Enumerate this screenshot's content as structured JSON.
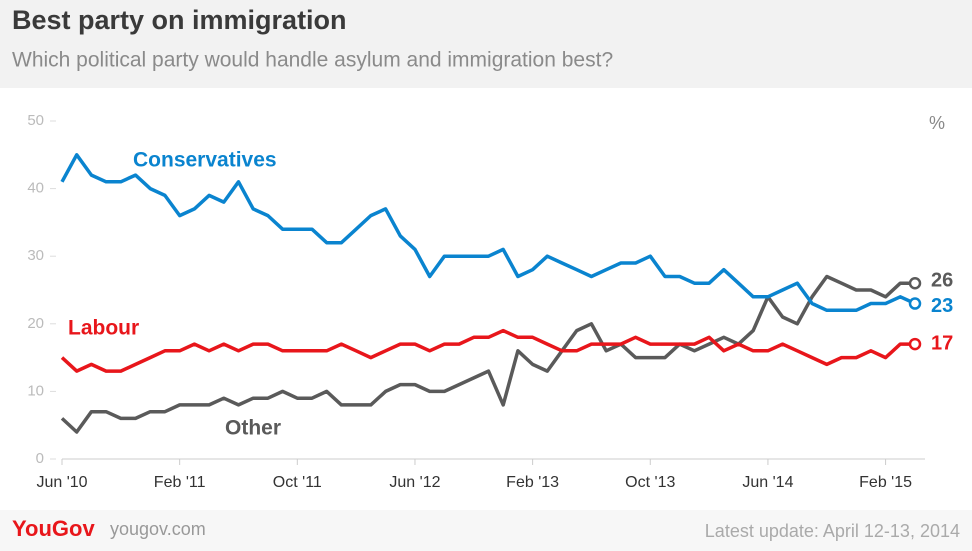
{
  "chart_data": {
    "type": "line",
    "title": "Best party on immigration",
    "subtitle": "Which political party would handle asylum and immigration best?",
    "y_unit": "%",
    "brand": "YouGov",
    "website": "yougov.com",
    "footnote": "Latest update: April 12-13, 2014",
    "x": [
      "2010-06",
      "2010-07",
      "2010-08",
      "2010-09",
      "2010-10",
      "2010-11",
      "2010-12",
      "2011-01",
      "2011-02",
      "2011-03",
      "2011-04",
      "2011-05",
      "2011-06",
      "2011-07",
      "2011-08",
      "2011-09",
      "2011-10",
      "2011-11",
      "2011-12",
      "2012-01",
      "2012-02",
      "2012-03",
      "2012-04",
      "2012-05",
      "2012-06",
      "2012-07",
      "2012-08",
      "2012-09",
      "2012-10",
      "2012-11",
      "2012-12",
      "2013-01",
      "2013-02",
      "2013-03",
      "2013-04",
      "2013-05",
      "2013-06",
      "2013-07",
      "2013-08",
      "2013-09",
      "2013-10",
      "2013-11",
      "2013-12",
      "2014-01",
      "2014-02",
      "2014-03",
      "2014-04",
      "2014-05",
      "2014-06",
      "2014-07",
      "2014-08",
      "2014-09",
      "2014-10",
      "2014-11",
      "2014-12",
      "2015-01",
      "2015-02",
      "2015-03",
      "2015-04"
    ],
    "series": [
      {
        "name": "Conservatives",
        "color": "#0a84cf",
        "values": [
          41,
          45,
          42,
          41,
          41,
          42,
          40,
          39,
          36,
          37,
          39,
          38,
          41,
          37,
          36,
          34,
          34,
          34,
          32,
          32,
          34,
          36,
          37,
          33,
          31,
          27,
          30,
          30,
          30,
          30,
          31,
          27,
          28,
          30,
          29,
          28,
          27,
          28,
          29,
          29,
          30,
          27,
          27,
          26,
          26,
          28,
          26,
          24,
          24,
          25,
          26,
          23,
          22,
          22,
          22,
          23,
          23,
          24,
          23
        ]
      },
      {
        "name": "Labour",
        "color": "#e8161b",
        "values": [
          15,
          13,
          14,
          13,
          13,
          14,
          15,
          16,
          16,
          17,
          16,
          17,
          16,
          17,
          17,
          16,
          16,
          16,
          16,
          17,
          16,
          15,
          16,
          17,
          17,
          16,
          17,
          17,
          18,
          18,
          19,
          18,
          18,
          17,
          16,
          16,
          17,
          17,
          17,
          18,
          17,
          17,
          17,
          17,
          18,
          16,
          17,
          16,
          16,
          17,
          16,
          15,
          14,
          15,
          15,
          16,
          15,
          17,
          17
        ]
      },
      {
        "name": "Other",
        "color": "#5a5a5a",
        "values": [
          6,
          4,
          7,
          7,
          6,
          6,
          7,
          7,
          8,
          8,
          8,
          9,
          8,
          9,
          9,
          10,
          9,
          9,
          10,
          8,
          8,
          8,
          10,
          11,
          11,
          10,
          10,
          11,
          12,
          13,
          8,
          16,
          14,
          13,
          16,
          19,
          20,
          16,
          17,
          15,
          15,
          15,
          17,
          16,
          17,
          18,
          17,
          19,
          24,
          21,
          20,
          24,
          27,
          26,
          25,
          25,
          24,
          26,
          26
        ]
      }
    ],
    "xlim": [
      "2010-06",
      "2015-04"
    ],
    "xticks": [
      {
        "value": "2010-06",
        "label": "Jun '10"
      },
      {
        "value": "2011-02",
        "label": "Feb '11"
      },
      {
        "value": "2011-10",
        "label": "Oct '11"
      },
      {
        "value": "2012-06",
        "label": "Jun '12"
      },
      {
        "value": "2013-02",
        "label": "Feb '13"
      },
      {
        "value": "2013-10",
        "label": "Oct '13"
      },
      {
        "value": "2014-06",
        "label": "Jun '14"
      },
      {
        "value": "2015-02",
        "label": "Feb '15"
      }
    ],
    "ylim": [
      0,
      50
    ],
    "yticks": [
      0,
      10,
      20,
      30,
      40,
      50
    ]
  }
}
